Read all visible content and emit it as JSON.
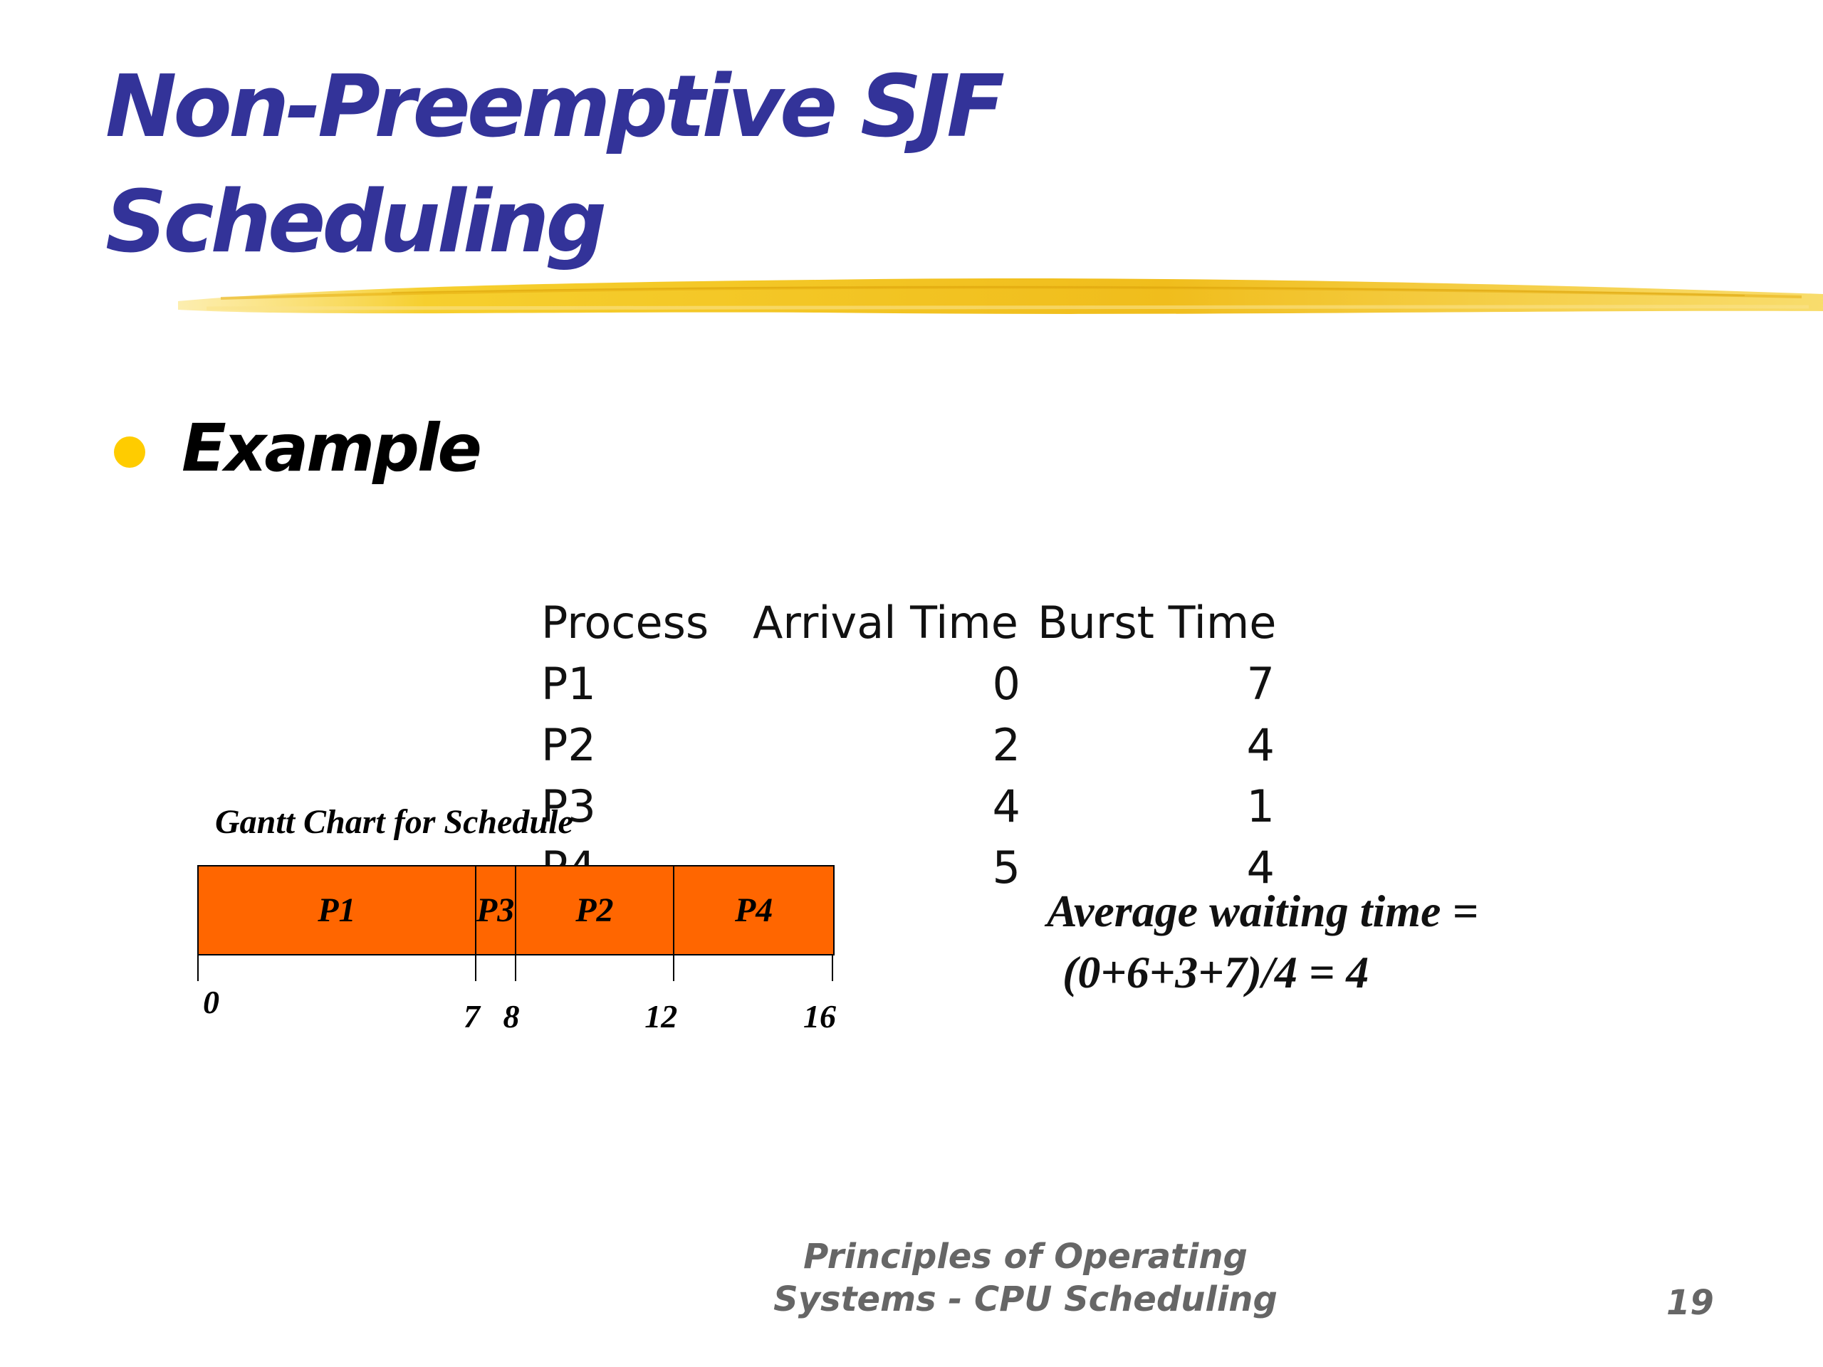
{
  "slide": {
    "title_line1": "Non-Preemptive SJF",
    "title_line2": "Scheduling",
    "bullet": "Example",
    "colors": {
      "title": "#333399",
      "bullet": "#ffcc00",
      "brush": "#f2c21a",
      "gantt_fill": "#ff6600",
      "footer": "#666666"
    }
  },
  "process_table": {
    "headers": [
      "Process",
      "Arrival Time",
      "Burst Time"
    ],
    "rows": [
      [
        "P1",
        "0",
        "7"
      ],
      [
        "P2",
        "2",
        "4"
      ],
      [
        "P3",
        "4",
        "1"
      ],
      [
        "P4",
        "5",
        "4"
      ]
    ]
  },
  "gantt": {
    "title": "Gantt Chart for Schedule",
    "segments": [
      {
        "label": "P1",
        "start": 0,
        "end": 7
      },
      {
        "label": "P3",
        "start": 7,
        "end": 8
      },
      {
        "label": "P2",
        "start": 8,
        "end": 12
      },
      {
        "label": "P4",
        "start": 12,
        "end": 16
      }
    ],
    "ticks": [
      "0",
      "7",
      "8",
      "12",
      "16"
    ]
  },
  "average": {
    "line1": "Average waiting time =",
    "line2": "(0+6+3+7)/4 = 4"
  },
  "footer": {
    "line1": "Principles of Operating",
    "line2": "Systems - CPU Scheduling",
    "page": "19"
  }
}
